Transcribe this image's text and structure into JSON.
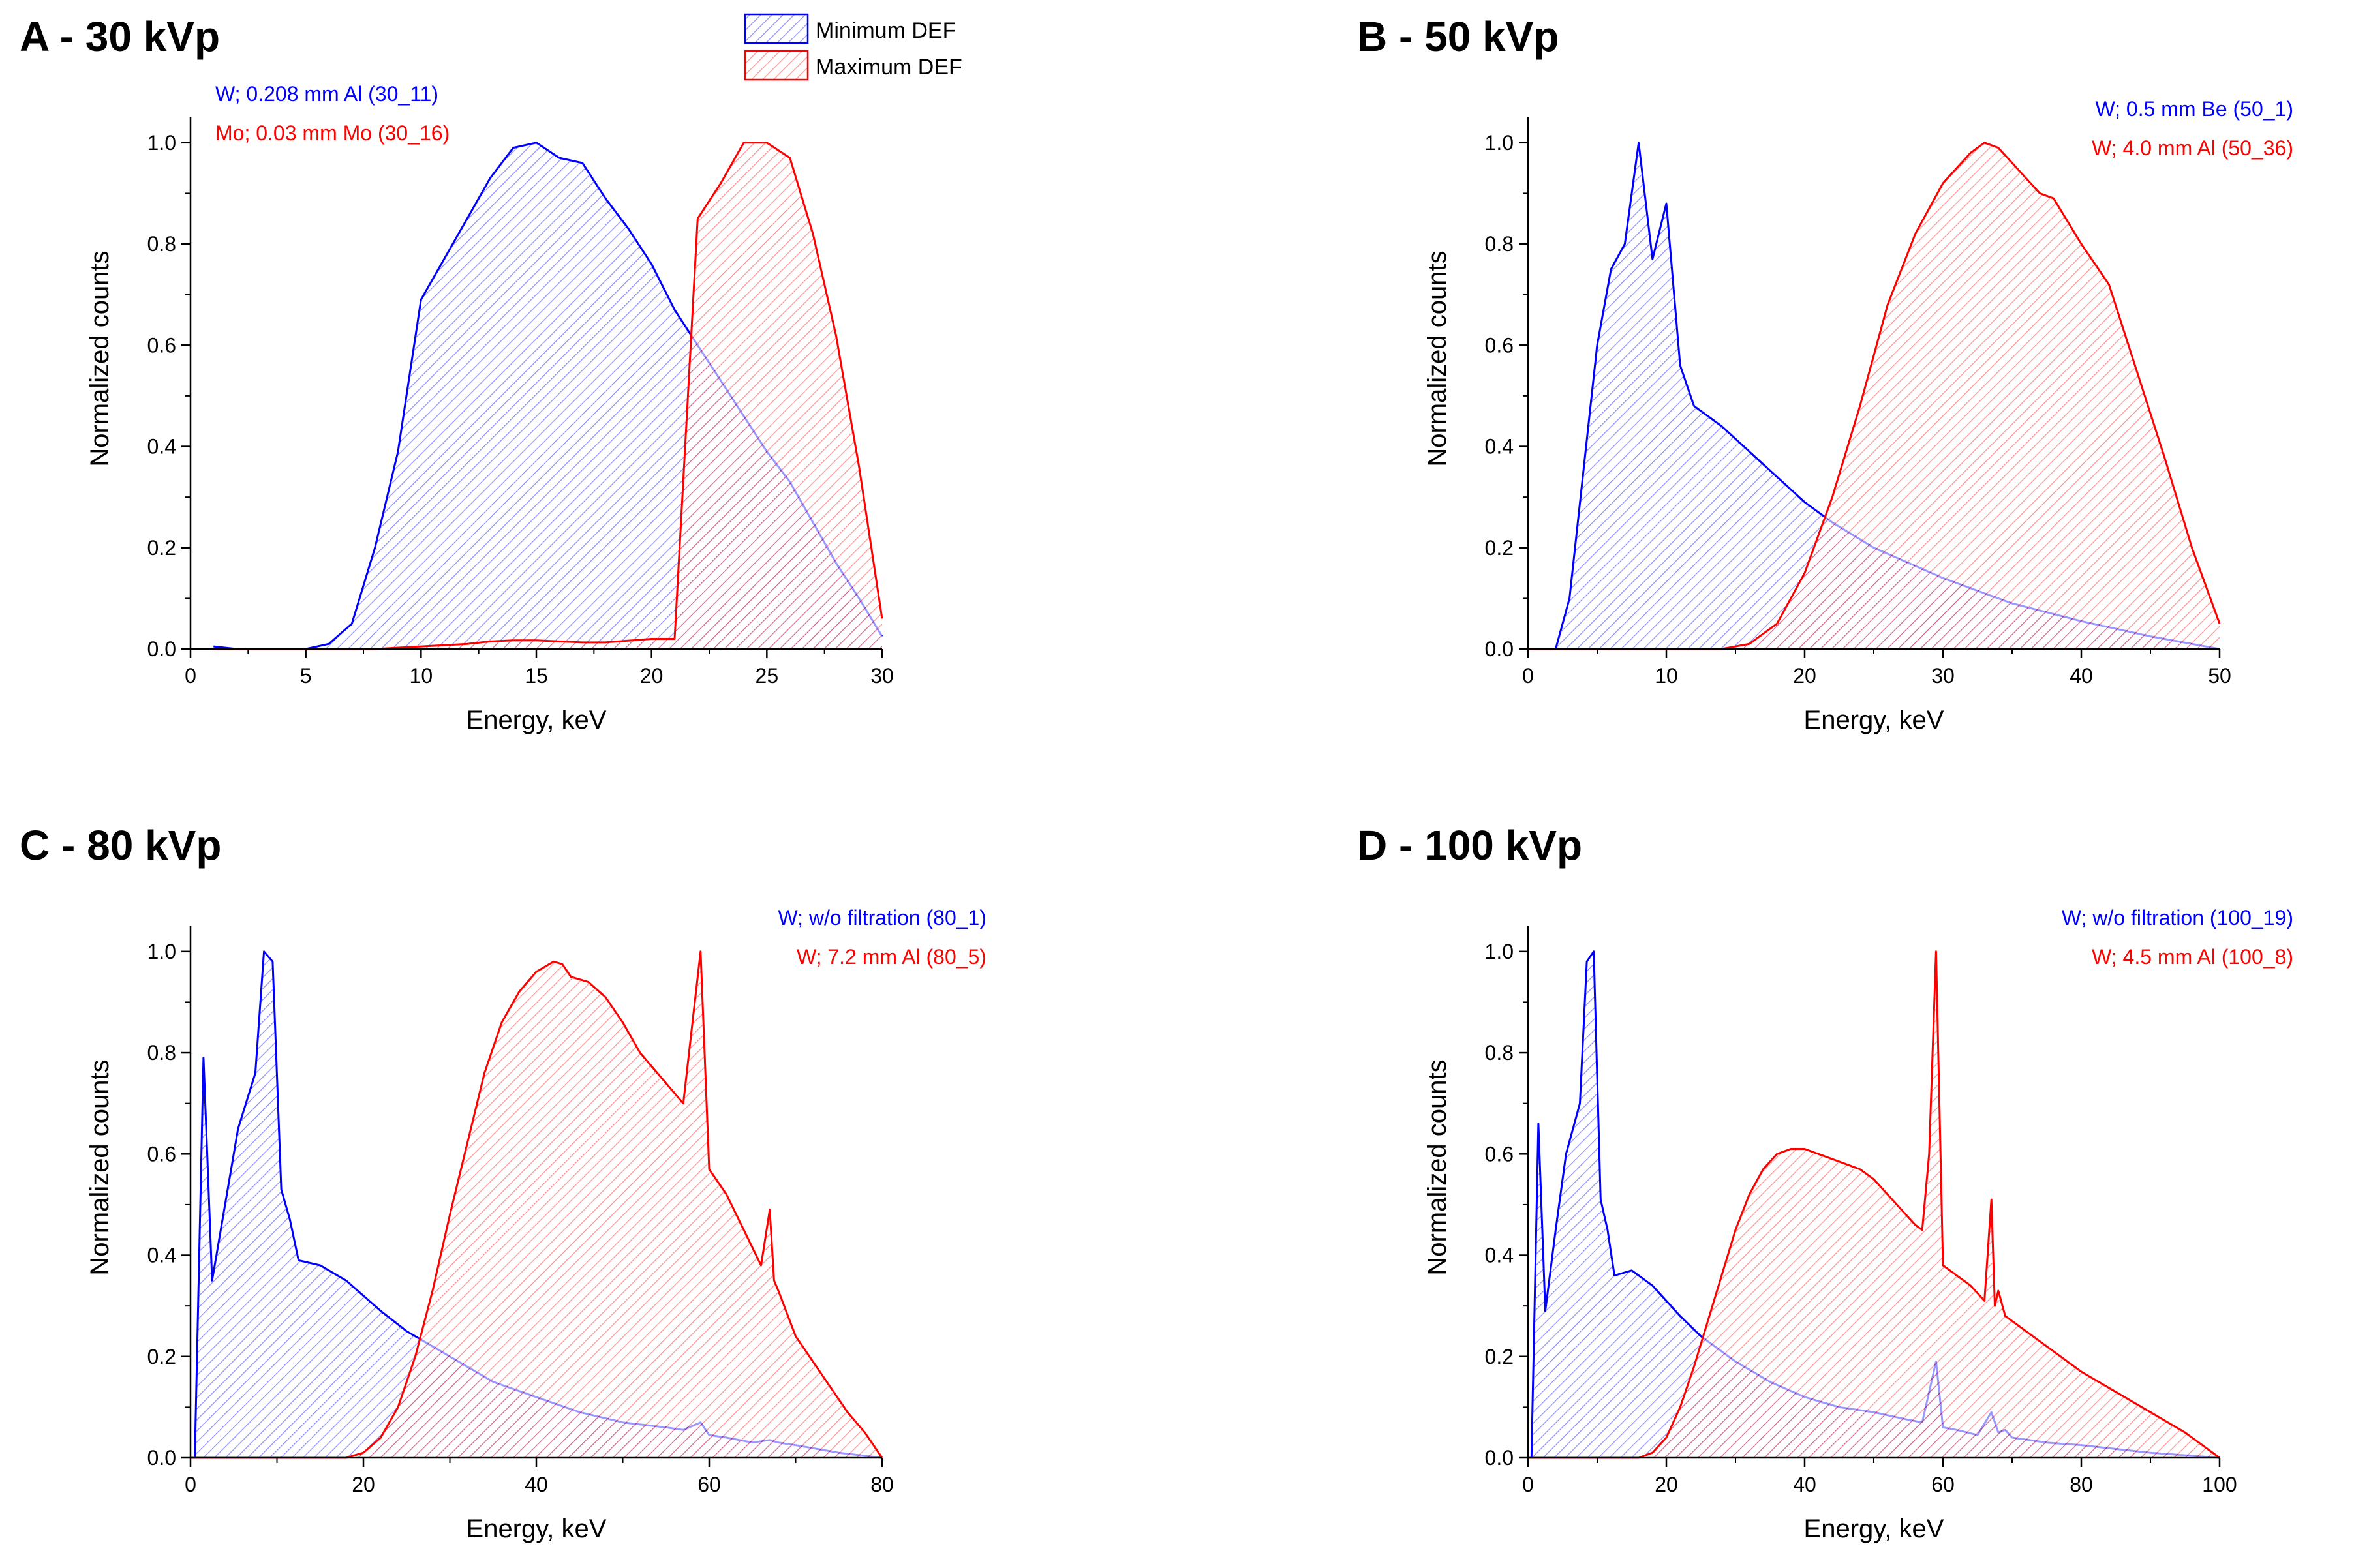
{
  "legend": {
    "entries": [
      {
        "label": "Minimum DEF",
        "color": "#0000ff"
      },
      {
        "label": "Maximum DEF",
        "color": "#ff0000"
      }
    ]
  },
  "chart_data": [
    {
      "type": "area",
      "title": "A - 30 kVp",
      "xlabel": "Energy, keV",
      "ylabel": "Normalized counts",
      "xlim": [
        0,
        30
      ],
      "ylim": [
        0,
        1.05
      ],
      "xticks": [
        0,
        5,
        10,
        15,
        20,
        25,
        30
      ],
      "yticks": [
        0.0,
        0.2,
        0.4,
        0.6,
        0.8,
        1.0
      ],
      "annotations": [
        {
          "text": "W; 0.208 mm Al (30_11)",
          "color": "#0000ff",
          "align": "left"
        },
        {
          "text": "Mo; 0.03 mm Mo (30_16)",
          "color": "#ff0000",
          "align": "left"
        }
      ],
      "series": [
        {
          "name": "Minimum DEF",
          "color": "#0000ff",
          "x": [
            1,
            2,
            5,
            6,
            7,
            8,
            9,
            10,
            11,
            12,
            13,
            14,
            15,
            16,
            17,
            18,
            19,
            20,
            21,
            22,
            23,
            24,
            25,
            26,
            27,
            28,
            29,
            30
          ],
          "y": [
            0.005,
            0.0,
            0.0,
            0.01,
            0.05,
            0.2,
            0.39,
            0.69,
            0.77,
            0.85,
            0.93,
            0.99,
            1.0,
            0.97,
            0.96,
            0.89,
            0.83,
            0.76,
            0.67,
            0.6,
            0.53,
            0.46,
            0.39,
            0.33,
            0.25,
            0.17,
            0.1,
            0.025
          ]
        },
        {
          "name": "Maximum DEF",
          "color": "#ff0000",
          "x": [
            1,
            5,
            8,
            10,
            12,
            13,
            14,
            15,
            16,
            17,
            18,
            20,
            21,
            22,
            23,
            24,
            25,
            26,
            27,
            28,
            29,
            30
          ],
          "y": [
            0.0,
            0.0,
            0.0,
            0.005,
            0.01,
            0.015,
            0.017,
            0.017,
            0.015,
            0.013,
            0.013,
            0.02,
            0.02,
            0.85,
            0.92,
            1.0,
            1.0,
            0.97,
            0.82,
            0.62,
            0.36,
            0.06
          ]
        }
      ]
    },
    {
      "type": "area",
      "title": "B - 50 kVp",
      "xlabel": "Energy, keV",
      "ylabel": "Normalized counts",
      "xlim": [
        0,
        50
      ],
      "ylim": [
        0,
        1.05
      ],
      "xticks": [
        0,
        10,
        20,
        30,
        40,
        50
      ],
      "yticks": [
        0.0,
        0.2,
        0.4,
        0.6,
        0.8,
        1.0
      ],
      "annotations": [
        {
          "text": "W; 0.5 mm Be (50_1)",
          "color": "#0000ff",
          "align": "right"
        },
        {
          "text": "W; 4.0 mm Al (50_36)",
          "color": "#ff0000",
          "align": "right"
        }
      ],
      "series": [
        {
          "name": "Minimum DEF",
          "color": "#0000ff",
          "x": [
            0,
            2,
            3,
            4,
            5,
            6,
            7,
            8,
            9,
            10,
            11,
            12,
            14,
            16,
            18,
            20,
            22,
            25,
            30,
            35,
            40,
            45,
            50
          ],
          "y": [
            0.0,
            0.0,
            0.1,
            0.35,
            0.6,
            0.75,
            0.8,
            1.0,
            0.77,
            0.88,
            0.56,
            0.48,
            0.44,
            0.39,
            0.34,
            0.29,
            0.25,
            0.2,
            0.14,
            0.09,
            0.055,
            0.025,
            0.0
          ]
        },
        {
          "name": "Maximum DEF",
          "color": "#ff0000",
          "x": [
            0,
            14,
            16,
            18,
            20,
            22,
            24,
            26,
            28,
            30,
            32,
            33,
            34,
            36,
            37,
            38,
            40,
            42,
            44,
            46,
            48,
            50
          ],
          "y": [
            0.0,
            0.0,
            0.01,
            0.05,
            0.15,
            0.3,
            0.48,
            0.68,
            0.82,
            0.92,
            0.98,
            1.0,
            0.99,
            0.93,
            0.9,
            0.89,
            0.8,
            0.72,
            0.55,
            0.38,
            0.2,
            0.05
          ]
        }
      ]
    },
    {
      "type": "area",
      "title": "C - 80 kVp",
      "xlabel": "Energy, keV",
      "ylabel": "Normalized counts",
      "xlim": [
        0,
        80
      ],
      "ylim": [
        0,
        1.05
      ],
      "xticks": [
        0,
        20,
        40,
        60,
        80
      ],
      "yticks": [
        0.0,
        0.2,
        0.4,
        0.6,
        0.8,
        1.0
      ],
      "annotations": [
        {
          "text": "W; w/o filtration (80_1)",
          "color": "#0000ff",
          "align": "right"
        },
        {
          "text": "W; 7.2 mm Al (80_5)",
          "color": "#ff0000",
          "align": "right"
        }
      ],
      "series": [
        {
          "name": "Minimum DEF",
          "color": "#0000ff",
          "x": [
            0,
            0.5,
            1.5,
            2.5,
            4,
            5.5,
            7.5,
            8.5,
            9.5,
            10.5,
            11.5,
            12.5,
            15,
            18,
            20,
            22,
            25,
            30,
            35,
            40,
            45,
            50,
            55,
            57,
            59,
            60,
            62,
            65,
            67,
            68,
            70,
            75,
            80
          ],
          "y": [
            0.0,
            0.0,
            0.79,
            0.35,
            0.5,
            0.65,
            0.76,
            1.0,
            0.98,
            0.53,
            0.47,
            0.39,
            0.38,
            0.35,
            0.32,
            0.29,
            0.25,
            0.2,
            0.15,
            0.12,
            0.09,
            0.07,
            0.06,
            0.055,
            0.07,
            0.045,
            0.04,
            0.03,
            0.035,
            0.03,
            0.025,
            0.01,
            0.0
          ]
        },
        {
          "name": "Maximum DEF",
          "color": "#ff0000",
          "x": [
            0,
            18,
            20,
            22,
            24,
            26,
            28,
            30,
            32,
            34,
            36,
            38,
            40,
            42,
            43,
            44,
            46,
            48,
            50,
            52,
            54,
            56,
            57,
            58,
            59,
            60,
            62,
            64,
            66,
            67,
            67.5,
            68,
            70,
            72,
            74,
            76,
            78,
            80
          ],
          "y": [
            0.0,
            0.0,
            0.01,
            0.04,
            0.1,
            0.2,
            0.33,
            0.48,
            0.62,
            0.76,
            0.86,
            0.92,
            0.96,
            0.98,
            0.975,
            0.95,
            0.94,
            0.91,
            0.86,
            0.8,
            0.76,
            0.72,
            0.7,
            0.85,
            1.0,
            0.57,
            0.52,
            0.45,
            0.38,
            0.49,
            0.35,
            0.33,
            0.24,
            0.19,
            0.14,
            0.09,
            0.05,
            0.0
          ]
        }
      ]
    },
    {
      "type": "area",
      "title": "D - 100 kVp",
      "xlabel": "Energy, keV",
      "ylabel": "Normalized counts",
      "xlim": [
        0,
        100
      ],
      "ylim": [
        0,
        1.05
      ],
      "xticks": [
        0,
        20,
        40,
        60,
        80,
        100
      ],
      "yticks": [
        0.0,
        0.2,
        0.4,
        0.6,
        0.8,
        1.0
      ],
      "annotations": [
        {
          "text": "W; w/o filtration (100_19)",
          "color": "#0000ff",
          "align": "right"
        },
        {
          "text": "W; 4.5 mm Al (100_8)",
          "color": "#ff0000",
          "align": "right"
        }
      ],
      "series": [
        {
          "name": "Minimum DEF",
          "color": "#0000ff",
          "x": [
            0,
            0.5,
            1.5,
            2.5,
            4,
            5.5,
            7.5,
            8.5,
            9.5,
            10.5,
            11.5,
            12.5,
            15,
            18,
            20,
            22,
            25,
            30,
            35,
            40,
            45,
            50,
            55,
            57,
            59,
            60,
            62,
            65,
            67,
            68,
            69,
            70,
            75,
            80,
            90,
            100
          ],
          "y": [
            0.0,
            0.0,
            0.66,
            0.29,
            0.45,
            0.6,
            0.7,
            0.98,
            1.0,
            0.51,
            0.45,
            0.36,
            0.37,
            0.34,
            0.31,
            0.28,
            0.24,
            0.19,
            0.15,
            0.12,
            0.1,
            0.09,
            0.075,
            0.07,
            0.19,
            0.06,
            0.055,
            0.045,
            0.09,
            0.05,
            0.055,
            0.04,
            0.03,
            0.025,
            0.01,
            0.0
          ]
        },
        {
          "name": "Maximum DEF",
          "color": "#ff0000",
          "x": [
            0,
            16,
            18,
            20,
            22,
            24,
            26,
            28,
            30,
            32,
            34,
            36,
            38,
            40,
            42,
            44,
            46,
            48,
            50,
            52,
            54,
            56,
            57,
            58,
            59,
            60,
            62,
            64,
            66,
            67,
            67.5,
            68,
            69,
            70,
            75,
            80,
            85,
            90,
            95,
            100
          ],
          "y": [
            0.0,
            0.0,
            0.01,
            0.04,
            0.1,
            0.18,
            0.27,
            0.36,
            0.45,
            0.52,
            0.57,
            0.6,
            0.61,
            0.61,
            0.6,
            0.59,
            0.58,
            0.57,
            0.55,
            0.52,
            0.49,
            0.46,
            0.45,
            0.6,
            1.0,
            0.38,
            0.36,
            0.34,
            0.31,
            0.51,
            0.3,
            0.33,
            0.28,
            0.27,
            0.22,
            0.17,
            0.13,
            0.09,
            0.05,
            0.0
          ]
        }
      ]
    }
  ]
}
